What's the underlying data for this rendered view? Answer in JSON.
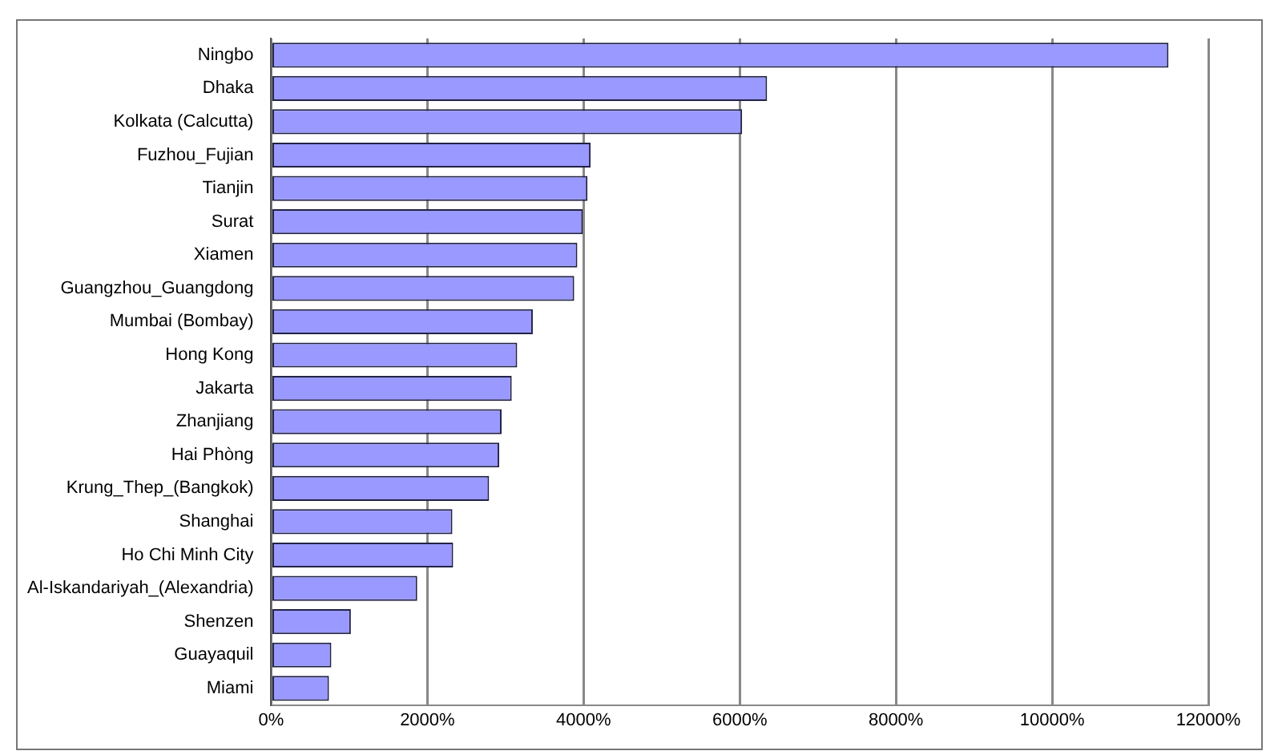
{
  "chart_data": {
    "type": "bar",
    "orientation": "horizontal",
    "categories": [
      "Ningbo",
      "Dhaka",
      "Kolkata (Calcutta)",
      "Fuzhou_Fujian",
      "Tianjin",
      "Surat",
      "Xiamen",
      "Guangzhou_Guangdong",
      "Mumbai (Bombay)",
      "Hong Kong",
      "Jakarta",
      "Zhanjiang",
      "Hai Phòng",
      "Krung_Thep_(Bangkok)",
      "Shanghai",
      "Ho Chi Minh City",
      "Al-Iskandariyah_(Alexandria)",
      "Shenzen",
      "Guayaquil",
      "Miami"
    ],
    "values": [
      11490,
      6350,
      6030,
      4090,
      4050,
      3990,
      3920,
      3880,
      3350,
      3150,
      3080,
      2950,
      2920,
      2790,
      2320,
      2330,
      1870,
      1020,
      770,
      740
    ],
    "color": "#9999ff",
    "xlim": [
      0,
      12000
    ],
    "xticks": [
      {
        "value": 0,
        "label": "0%"
      },
      {
        "value": 2000,
        "label": "2000%"
      },
      {
        "value": 4000,
        "label": "4000%"
      },
      {
        "value": 6000,
        "label": "6000%"
      },
      {
        "value": 8000,
        "label": "8000%"
      },
      {
        "value": 10000,
        "label": "10000%"
      },
      {
        "value": 12000,
        "label": "12000%"
      }
    ],
    "grid": "x",
    "legend": false
  }
}
